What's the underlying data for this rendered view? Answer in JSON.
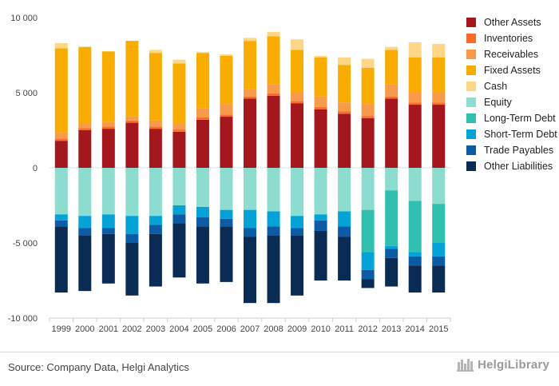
{
  "footer": {
    "source": "Source: Company Data, Helgi Analytics",
    "brand": "HelgiLibrary"
  },
  "chart_data": {
    "type": "bar",
    "stacked": true,
    "categories": [
      "1999",
      "2000",
      "2001",
      "2002",
      "2003",
      "2004",
      "2005",
      "2006",
      "2007",
      "2008",
      "2009",
      "2010",
      "2011",
      "2012",
      "2013",
      "2014",
      "2015"
    ],
    "ylim": [
      -10000,
      10000
    ],
    "yticks": [
      10000,
      5000,
      0,
      -5000,
      -10000
    ],
    "ytick_labels": [
      "10 000",
      "5 000",
      "0",
      "-5 000",
      "-10 000"
    ],
    "legend_position": "right",
    "series": [
      {
        "name": "Other Assets",
        "color": "#a3171d",
        "values": [
          1800,
          2500,
          2600,
          3000,
          2600,
          2400,
          3200,
          3400,
          4600,
          4800,
          4300,
          3900,
          3600,
          3300,
          4600,
          4200,
          4200
        ]
      },
      {
        "name": "Inventories",
        "color": "#ff6a2b",
        "values": [
          150,
          150,
          150,
          150,
          150,
          150,
          150,
          150,
          150,
          150,
          150,
          150,
          150,
          150,
          150,
          150,
          150
        ]
      },
      {
        "name": "Receivables",
        "color": "#f9994a",
        "values": [
          400,
          300,
          300,
          300,
          400,
          400,
          600,
          700,
          500,
          600,
          600,
          700,
          600,
          800,
          800,
          700,
          700
        ]
      },
      {
        "name": "Fixed Assets",
        "color": "#f8ad00",
        "values": [
          5600,
          5100,
          4700,
          5000,
          4500,
          4000,
          3700,
          3200,
          3200,
          3200,
          2800,
          2600,
          2500,
          2400,
          2300,
          2300,
          2300
        ]
      },
      {
        "name": "Cash",
        "color": "#fdd688",
        "values": [
          350,
          0,
          0,
          0,
          200,
          250,
          50,
          100,
          200,
          300,
          700,
          100,
          500,
          600,
          200,
          1000,
          900
        ]
      },
      {
        "name": "Equity",
        "color": "#8cdcd0",
        "values": [
          -3100,
          -3200,
          -3100,
          -3200,
          -3200,
          -2500,
          -2600,
          -2800,
          -2800,
          -2900,
          -3200,
          -3100,
          -2900,
          -2800,
          -1500,
          -2200,
          -2400
        ]
      },
      {
        "name": "Long-Term Debt",
        "color": "#2fc0b0",
        "values": [
          0,
          0,
          0,
          0,
          0,
          0,
          0,
          0,
          0,
          0,
          0,
          0,
          0,
          -2800,
          -3700,
          -3400,
          -2600
        ]
      },
      {
        "name": "Short-Term Debt",
        "color": "#03a3d7",
        "values": [
          -400,
          -800,
          -900,
          -1200,
          -600,
          -600,
          -700,
          -600,
          -1200,
          -1000,
          -800,
          -400,
          -1000,
          -1200,
          -200,
          -300,
          -900
        ]
      },
      {
        "name": "Trade Payables",
        "color": "#0b5ba5",
        "values": [
          -400,
          -500,
          -400,
          -600,
          -600,
          -600,
          -600,
          -500,
          -600,
          -600,
          -500,
          -700,
          -700,
          -600,
          -600,
          -600,
          -600
        ]
      },
      {
        "name": "Other Liabilities",
        "color": "#0a2c54",
        "values": [
          -4400,
          -3700,
          -3300,
          -3500,
          -3500,
          -3600,
          -3800,
          -3700,
          -4400,
          -4500,
          -4000,
          -3300,
          -2900,
          -600,
          -1900,
          -1800,
          -1800
        ]
      }
    ]
  }
}
